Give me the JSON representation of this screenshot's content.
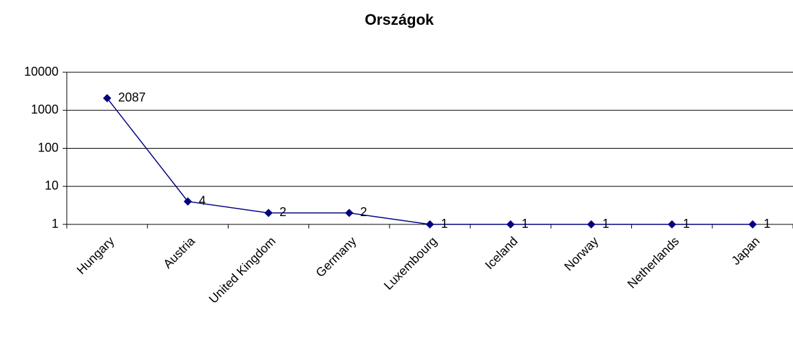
{
  "chart_data": {
    "type": "line",
    "title": "Országok",
    "categories": [
      "Hungary",
      "Austria",
      "United Kingdom",
      "Germany",
      "Luxembourg",
      "Iceland",
      "Norway",
      "Netherlands",
      "Japan"
    ],
    "values": [
      2087,
      4,
      2,
      2,
      1,
      1,
      1,
      1,
      1
    ],
    "color": "#000080",
    "log_scale": true,
    "ylim": [
      1,
      10000
    ],
    "yticks": [
      1,
      10,
      100,
      1000,
      10000
    ],
    "grid": true
  }
}
